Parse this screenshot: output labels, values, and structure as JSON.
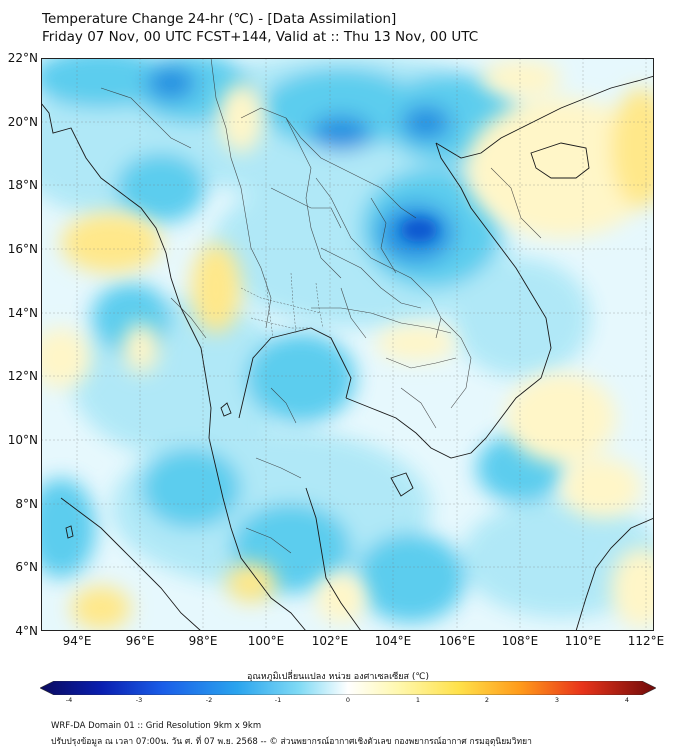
{
  "title_line1": "Temperature Change 24-hr (℃) - [Data Assimilation]",
  "title_line2": "Friday 07 Nov, 00 UTC FCST+144, Valid at :: Thu 13 Nov, 00 UTC",
  "lat_labels": [
    "22°N",
    "20°N",
    "18°N",
    "16°N",
    "14°N",
    "12°N",
    "10°N",
    "8°N",
    "6°N",
    "4°N"
  ],
  "lon_labels": [
    "94°E",
    "96°E",
    "98°E",
    "100°E",
    "102°E",
    "104°E",
    "106°E",
    "108°E",
    "110°E",
    "112°E"
  ],
  "colorbar": {
    "label": "อุณหภูมิเปลี่ยนแปลง หน่วย องศาเซลเซียส (℃)",
    "ticks": [
      "-4",
      "-3",
      "-2",
      "-1",
      "0",
      "1",
      "2",
      "3",
      "4"
    ],
    "range": [
      -4,
      4
    ]
  },
  "footer_line1": "WRF-DA Domain 01 :: Grid Resolution 9km x 9km",
  "footer_line2": "ปรับปรุงข้อมูล ณ เวลา 07:00น. วัน ศ. ที่ 07 พ.ย. 2568 -- © ส่วนพยากรณ์อากาศเชิงตัวเลข กองพยากรณ์อากาศ กรมอุตุนิยมวิทยา",
  "colors": {
    "map_background": "#e6f8fd",
    "cold_light": "#aee8f7",
    "cold_mid": "#55cbee",
    "cold_strong": "#1a8de0",
    "cold_max": "#1158d0",
    "warm_light": "#fff6c8",
    "warm_mid": "#ffe88a"
  }
}
